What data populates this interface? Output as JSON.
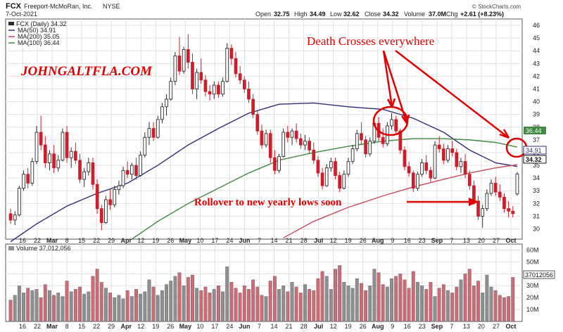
{
  "header": {
    "ticker": "FCX",
    "company": "Freeport-McMoRan, Inc.",
    "exchange": "NYSE",
    "date": "7-Oct-2021",
    "open_label": "Open",
    "open": "32.75",
    "high_label": "High",
    "high": "34.49",
    "low_label": "Low",
    "low": "32.62",
    "close_label": "Close",
    "close": "34.32",
    "volume_label": "Volume",
    "volume": "37.0M",
    "chg_label": "Chg",
    "chg": "+2.61 (+8.23%)",
    "copyright": "© StockCharts.com"
  },
  "legend": {
    "price": "FCX (Daily) 34.32",
    "ma50": "MA(50) 34.91",
    "ma200": "MA(200) 35.05",
    "ma100": "MA(100) 36.44",
    "volume": "Volume 37,012,056"
  },
  "annotations": {
    "watermark": "JOHNGALTFLA.COM",
    "death_cross": "Death Crosses everywhere",
    "rollover": "Rollover to new yearly lows soon"
  },
  "colors": {
    "up": "#2b2b2b",
    "down": "#cc1f2a",
    "ma50": "#2d2d7a",
    "ma100": "#3f8a3f",
    "ma200": "#c9485b",
    "vol_up": "#8f8f8f",
    "vol_down": "#cf6b74",
    "annotation": "#e00000",
    "grid": "#e0e0e0"
  },
  "chart_data": {
    "type": "candlestick",
    "y_ticks": [
      30,
      31,
      32,
      33,
      34,
      35,
      36,
      37,
      38,
      39,
      40,
      41,
      42,
      43,
      44,
      45,
      46
    ],
    "ylim": [
      29.2,
      46.5
    ],
    "x_ticks": [
      "16",
      "22",
      "Mar",
      "8",
      "15",
      "22",
      "29",
      "Apr",
      "12",
      "19",
      "26",
      "May",
      "10",
      "17",
      "24",
      "Jun",
      "7",
      "14",
      "21",
      "28",
      "Jul",
      "12",
      "19",
      "26",
      "Aug",
      "9",
      "16",
      "23",
      "Sep",
      "7",
      "13",
      "20",
      "27",
      "Oct"
    ],
    "month_ticks": [
      "Mar",
      "Apr",
      "May",
      "Jun",
      "Jul",
      "Aug",
      "Sep",
      "Oct"
    ],
    "price_badges": {
      "ma100": "36.44",
      "ma50": "34.91",
      "close": "34.32"
    },
    "volume_ticks": [
      "60M",
      "50M",
      "40M",
      "30M",
      "20M",
      "10M"
    ],
    "volume_ylim": [
      0,
      65
    ],
    "volume_badge": "37012056",
    "candles_ohlc": [
      [
        31.2,
        31.6,
        30.4,
        30.7
      ],
      [
        30.7,
        31.4,
        30.3,
        31.1
      ],
      [
        31.1,
        33.4,
        31.0,
        33.2
      ],
      [
        33.2,
        34.6,
        33.0,
        34.3
      ],
      [
        34.3,
        34.8,
        33.2,
        33.6
      ],
      [
        33.6,
        35.6,
        33.4,
        35.3
      ],
      [
        35.3,
        38.1,
        35.1,
        37.6
      ],
      [
        37.6,
        38.9,
        36.2,
        36.6
      ],
      [
        36.6,
        37.3,
        34.8,
        35.2
      ],
      [
        35.2,
        36.2,
        34.6,
        35.9
      ],
      [
        35.9,
        36.6,
        34.4,
        34.8
      ],
      [
        34.8,
        35.8,
        34.5,
        35.4
      ],
      [
        35.4,
        37.9,
        35.3,
        37.6
      ],
      [
        37.6,
        38.1,
        35.2,
        35.6
      ],
      [
        35.6,
        36.4,
        34.8,
        36.1
      ],
      [
        36.1,
        36.8,
        35.1,
        35.4
      ],
      [
        35.4,
        35.9,
        33.6,
        33.9
      ],
      [
        33.9,
        34.8,
        33.3,
        34.5
      ],
      [
        34.5,
        35.6,
        34.2,
        35.2
      ],
      [
        35.2,
        35.6,
        33.1,
        33.5
      ],
      [
        33.5,
        33.9,
        31.2,
        31.6
      ],
      [
        31.6,
        31.9,
        29.9,
        30.5
      ],
      [
        30.5,
        32.6,
        30.4,
        32.3
      ],
      [
        32.3,
        33.1,
        31.5,
        31.9
      ],
      [
        31.9,
        33.4,
        31.7,
        33.1
      ],
      [
        33.1,
        33.8,
        32.7,
        33.4
      ],
      [
        33.4,
        34.9,
        33.2,
        34.6
      ],
      [
        34.6,
        35.3,
        34.0,
        34.3
      ],
      [
        34.3,
        35.2,
        33.9,
        35.0
      ],
      [
        35.0,
        35.6,
        33.9,
        34.2
      ],
      [
        34.2,
        36.1,
        34.1,
        35.8
      ],
      [
        35.8,
        37.6,
        35.6,
        37.2
      ],
      [
        37.2,
        38.4,
        36.6,
        37.9
      ],
      [
        37.9,
        38.4,
        36.9,
        37.2
      ],
      [
        37.2,
        38.9,
        37.1,
        38.6
      ],
      [
        38.6,
        39.9,
        38.3,
        39.6
      ],
      [
        39.6,
        40.6,
        38.9,
        40.2
      ],
      [
        40.2,
        41.9,
        40.1,
        41.6
      ],
      [
        41.6,
        43.9,
        41.3,
        43.6
      ],
      [
        43.6,
        45.1,
        42.1,
        42.4
      ],
      [
        42.4,
        44.3,
        42.2,
        44.1
      ],
      [
        44.1,
        45.3,
        42.6,
        43.1
      ],
      [
        43.1,
        43.8,
        40.6,
        41.0
      ],
      [
        41.0,
        42.6,
        40.2,
        42.3
      ],
      [
        42.3,
        43.4,
        41.4,
        41.7
      ],
      [
        41.7,
        42.1,
        40.4,
        40.8
      ],
      [
        40.8,
        41.3,
        40.1,
        40.6
      ],
      [
        40.6,
        41.6,
        40.2,
        41.3
      ],
      [
        41.3,
        41.6,
        40.3,
        40.6
      ],
      [
        40.6,
        41.9,
        40.4,
        41.6
      ],
      [
        41.6,
        44.6,
        41.5,
        44.2
      ],
      [
        44.2,
        44.5,
        42.9,
        43.4
      ],
      [
        43.4,
        43.9,
        41.9,
        42.2
      ],
      [
        42.2,
        42.8,
        41.4,
        41.7
      ],
      [
        41.7,
        42.0,
        40.7,
        41.0
      ],
      [
        41.0,
        41.6,
        39.9,
        40.2
      ],
      [
        40.2,
        40.6,
        38.7,
        39.0
      ],
      [
        39.0,
        39.3,
        37.4,
        37.7
      ],
      [
        37.7,
        38.2,
        36.3,
        36.6
      ],
      [
        36.6,
        37.8,
        36.4,
        37.5
      ],
      [
        37.5,
        37.8,
        35.2,
        35.6
      ],
      [
        35.6,
        36.2,
        34.3,
        34.6
      ],
      [
        34.6,
        35.9,
        34.4,
        35.7
      ],
      [
        35.7,
        37.9,
        35.6,
        37.6
      ],
      [
        37.6,
        38.1,
        36.8,
        37.2
      ],
      [
        37.2,
        37.9,
        36.6,
        37.7
      ],
      [
        37.7,
        38.3,
        36.8,
        37.1
      ],
      [
        37.1,
        37.5,
        36.3,
        36.6
      ],
      [
        36.6,
        37.4,
        36.2,
        36.9
      ],
      [
        36.9,
        37.2,
        35.9,
        36.2
      ],
      [
        36.2,
        36.8,
        35.1,
        35.4
      ],
      [
        35.4,
        35.7,
        34.1,
        34.4
      ],
      [
        34.4,
        34.8,
        33.1,
        33.4
      ],
      [
        33.4,
        35.1,
        33.3,
        34.8
      ],
      [
        34.8,
        35.6,
        34.5,
        35.3
      ],
      [
        35.3,
        35.6,
        33.9,
        34.2
      ],
      [
        34.2,
        34.5,
        32.9,
        33.2
      ],
      [
        33.2,
        34.6,
        33.1,
        34.3
      ],
      [
        34.3,
        35.6,
        34.1,
        35.3
      ],
      [
        35.3,
        36.6,
        35.1,
        36.3
      ],
      [
        36.3,
        37.8,
        36.1,
        37.5
      ],
      [
        37.5,
        38.4,
        36.6,
        37.0
      ],
      [
        37.0,
        37.3,
        35.6,
        35.9
      ],
      [
        35.9,
        37.2,
        35.7,
        36.9
      ],
      [
        36.9,
        38.6,
        36.7,
        38.3
      ],
      [
        38.3,
        38.8,
        36.9,
        37.2
      ],
      [
        37.2,
        37.9,
        36.4,
        36.7
      ],
      [
        36.7,
        38.4,
        36.5,
        38.1
      ],
      [
        38.1,
        39.1,
        37.8,
        38.6
      ],
      [
        38.6,
        38.9,
        37.4,
        37.7
      ],
      [
        37.7,
        37.9,
        35.9,
        36.2
      ],
      [
        36.2,
        36.5,
        34.6,
        34.9
      ],
      [
        34.9,
        35.3,
        34.1,
        34.4
      ],
      [
        34.4,
        34.6,
        32.9,
        33.2
      ],
      [
        33.2,
        34.5,
        33.0,
        34.3
      ],
      [
        34.3,
        35.5,
        34.1,
        35.2
      ],
      [
        35.2,
        35.8,
        34.3,
        34.6
      ],
      [
        34.6,
        34.9,
        33.7,
        34.0
      ],
      [
        34.0,
        36.9,
        33.9,
        36.6
      ],
      [
        36.6,
        37.3,
        36.0,
        36.3
      ],
      [
        36.3,
        36.7,
        35.1,
        35.4
      ],
      [
        35.4,
        36.6,
        35.2,
        36.3
      ],
      [
        36.3,
        36.9,
        35.7,
        36.0
      ],
      [
        36.0,
        36.3,
        34.6,
        34.9
      ],
      [
        34.9,
        35.6,
        34.4,
        35.3
      ],
      [
        35.3,
        35.9,
        34.0,
        34.3
      ],
      [
        34.3,
        34.6,
        33.1,
        33.4
      ],
      [
        33.4,
        33.8,
        31.9,
        32.2
      ],
      [
        32.2,
        32.6,
        30.7,
        31.0
      ],
      [
        31.0,
        31.9,
        30.1,
        31.6
      ],
      [
        31.6,
        33.1,
        31.4,
        32.8
      ],
      [
        32.8,
        33.9,
        32.6,
        33.6
      ],
      [
        33.6,
        34.1,
        32.6,
        32.9
      ],
      [
        32.9,
        33.5,
        32.2,
        32.5
      ],
      [
        32.5,
        32.8,
        31.3,
        31.6
      ],
      [
        31.6,
        32.2,
        30.9,
        31.4
      ],
      [
        31.4,
        31.8,
        30.9,
        31.2
      ],
      [
        32.75,
        34.49,
        32.62,
        34.32
      ]
    ],
    "volume_m": [
      18,
      22,
      30,
      24,
      28,
      26,
      27,
      20,
      31,
      26,
      22,
      24,
      21,
      34,
      25,
      27,
      29,
      23,
      25,
      38,
      44,
      33,
      28,
      24,
      20,
      22,
      19,
      26,
      21,
      27,
      23,
      25,
      35,
      29,
      22,
      26,
      31,
      34,
      38,
      41,
      30,
      37,
      39,
      28,
      26,
      29,
      24,
      27,
      30,
      25,
      46,
      33,
      28,
      24,
      30,
      27,
      35,
      29,
      22,
      21,
      34,
      38,
      27,
      30,
      25,
      33,
      29,
      24,
      31,
      27,
      26,
      36,
      42,
      38,
      27,
      44,
      47,
      33,
      30,
      28,
      36,
      32,
      26,
      30,
      44,
      41,
      31,
      29,
      36,
      38,
      40,
      35,
      28,
      42,
      33,
      30,
      27,
      33,
      21,
      28,
      31,
      26,
      24,
      29,
      35,
      40,
      44,
      30,
      34,
      24,
      39,
      29,
      26,
      22,
      20,
      21,
      37.0
    ],
    "ma50": [
      [
        0,
        29.0
      ],
      [
        6,
        30.4
      ],
      [
        13,
        31.8
      ],
      [
        20,
        32.8
      ],
      [
        27,
        33.6
      ],
      [
        34,
        35.0
      ],
      [
        41,
        36.6
      ],
      [
        48,
        37.9
      ],
      [
        55,
        39.1
      ],
      [
        62,
        39.8
      ],
      [
        70,
        39.9
      ],
      [
        78,
        39.6
      ],
      [
        86,
        39.4
      ],
      [
        93,
        38.7
      ],
      [
        100,
        37.6
      ],
      [
        106,
        36.2
      ],
      [
        112,
        35.2
      ],
      [
        117,
        34.91
      ]
    ],
    "ma100": [
      [
        28,
        29.2
      ],
      [
        34,
        30.6
      ],
      [
        41,
        32.0
      ],
      [
        48,
        33.2
      ],
      [
        55,
        34.4
      ],
      [
        62,
        35.4
      ],
      [
        70,
        36.0
      ],
      [
        78,
        36.5
      ],
      [
        86,
        36.9
      ],
      [
        93,
        37.1
      ],
      [
        100,
        37.1
      ],
      [
        106,
        37.0
      ],
      [
        112,
        36.8
      ],
      [
        117,
        36.44
      ]
    ],
    "ma200": [
      [
        63,
        29.3
      ],
      [
        70,
        30.6
      ],
      [
        78,
        31.7
      ],
      [
        86,
        32.6
      ],
      [
        93,
        33.3
      ],
      [
        100,
        33.9
      ],
      [
        106,
        34.4
      ],
      [
        112,
        34.8
      ],
      [
        117,
        35.05
      ]
    ]
  }
}
